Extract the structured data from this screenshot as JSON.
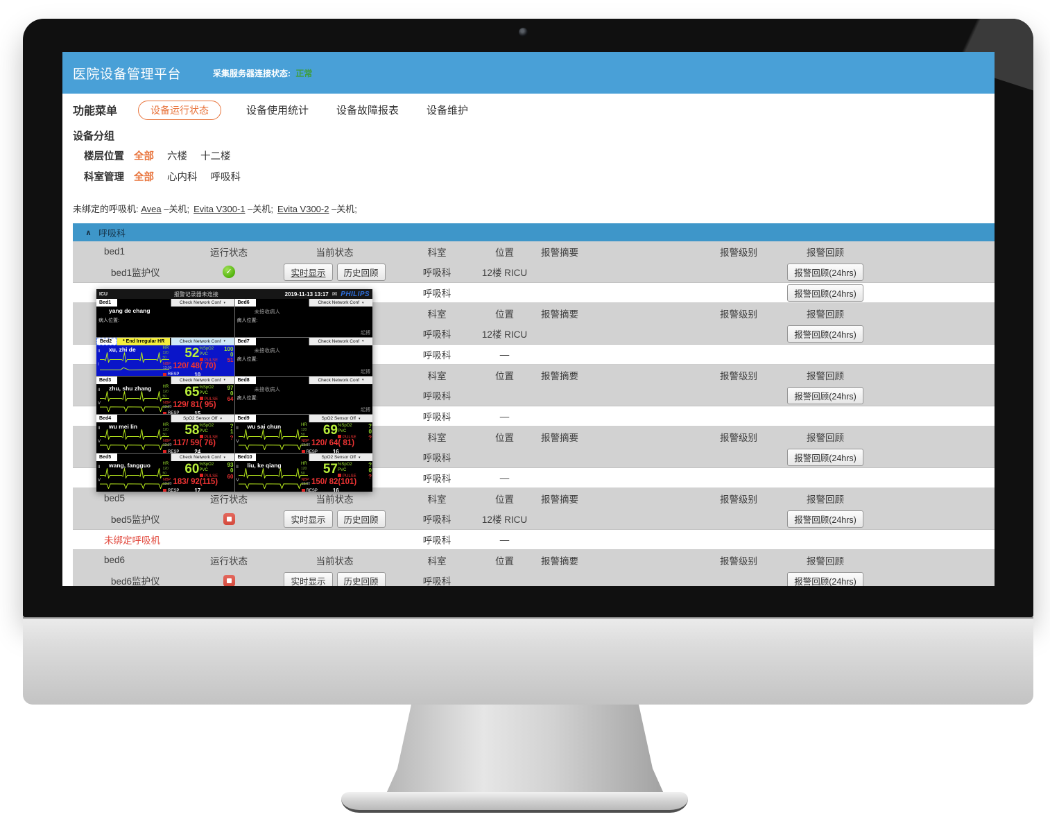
{
  "header": {
    "title": "医院设备管理平台",
    "server_status_label": "采集服务器连接状态:",
    "server_status_value": "正常"
  },
  "nav": {
    "menu_label": "功能菜单",
    "tabs": [
      {
        "label": "设备运行状态",
        "active": true
      },
      {
        "label": "设备使用统计",
        "active": false
      },
      {
        "label": "设备故障报表",
        "active": false
      },
      {
        "label": "设备维护",
        "active": false
      }
    ]
  },
  "filters": {
    "group_label": "设备分组",
    "rows": [
      {
        "label": "楼层位置",
        "options": [
          {
            "label": "全部",
            "active": true
          },
          {
            "label": "六楼",
            "active": false
          },
          {
            "label": "十二楼",
            "active": false
          }
        ]
      },
      {
        "label": "科室管理",
        "options": [
          {
            "label": "全部",
            "active": true
          },
          {
            "label": "心内科",
            "active": false
          },
          {
            "label": "呼吸科",
            "active": false
          }
        ]
      }
    ]
  },
  "unbound": {
    "prefix": "未绑定的呼吸机:",
    "items": [
      {
        "link": "Avea",
        "suffix": "–关机;"
      },
      {
        "link": "Evita V300-1",
        "suffix": "–关机;"
      },
      {
        "link": "Evita V300-2",
        "suffix": "–关机;"
      }
    ]
  },
  "section": {
    "collapse_icon": "∧",
    "title": "呼吸科"
  },
  "table": {
    "columns": [
      "运行状态",
      "当前状态",
      "科室",
      "位置",
      "报警摘要",
      "报警级别",
      "报警回顾"
    ],
    "buttons": {
      "realtime": "实时显示",
      "history": "历史回顾",
      "alarm_review": "报警回顾(24hrs)"
    },
    "dash": "—",
    "blocks": [
      {
        "bed": "bed1",
        "device": "bed1监护仪",
        "status": "running",
        "covered": false,
        "realtime_link": true,
        "dept": "呼吸科",
        "location": "12楼 RICU",
        "device_alarm_btn": true,
        "vent": {
          "label": "",
          "dept": "呼吸科",
          "pos": "",
          "alarm_btn": true
        }
      },
      {
        "bed": "",
        "device": "",
        "status": "none",
        "covered": true,
        "realtime_link": false,
        "dept": "呼吸科",
        "location": "12楼 RICU",
        "device_alarm_btn": true,
        "vent": {
          "label": "",
          "dept": "呼吸科",
          "pos": "—",
          "alarm_btn": false
        }
      },
      {
        "bed": "",
        "device": "",
        "status": "none",
        "covered": true,
        "realtime_link": false,
        "dept": "呼吸科",
        "location": "",
        "device_alarm_btn": true,
        "vent": {
          "label": "",
          "dept": "呼吸科",
          "pos": "—",
          "alarm_btn": false
        }
      },
      {
        "bed": "",
        "device": "",
        "status": "none",
        "covered": true,
        "realtime_link": false,
        "dept": "呼吸科",
        "location": "",
        "device_alarm_btn": true,
        "vent": {
          "label": "",
          "dept": "呼吸科",
          "pos": "—",
          "alarm_btn": false
        }
      },
      {
        "bed": "bed5",
        "device": "bed5监护仪",
        "status": "stopped",
        "covered": false,
        "realtime_link": false,
        "dept": "呼吸科",
        "location": "12楼 RICU",
        "device_alarm_btn": true,
        "vent": {
          "label": "未绑定呼吸机",
          "dept": "呼吸科",
          "pos": "—",
          "alarm_btn": false
        }
      },
      {
        "bed": "bed6",
        "device": "bed6监护仪",
        "status": "stopped",
        "covered": false,
        "realtime_link": false,
        "dept": "呼吸科",
        "location": "",
        "device_alarm_btn": true,
        "vent": null
      }
    ]
  },
  "monitor": {
    "titlebar": {
      "unit": "ICU",
      "alarm_text": "报警记录器未连接",
      "datetime": "2019-11-13 13:17",
      "brand": "PHILIPS"
    },
    "labels": {
      "hr": "HR",
      "spo2": "%SpO2",
      "pvc": "PVC",
      "pulse": "PULSE",
      "nbp": "NBP",
      "resp": "RESP"
    },
    "tiles": [
      {
        "bed": "Bed1",
        "type": "named",
        "conf": "Check Network Conf",
        "name": "yang de chang",
        "location_label": "病人位置:"
      },
      {
        "bed": "Bed6",
        "type": "empty",
        "conf": "Check Network Conf",
        "empty_text": "未接收病人",
        "location_label": "病人位置:",
        "pacing": "起搏"
      },
      {
        "bed": "Bed2",
        "type": "vitals",
        "selected": true,
        "conf": "Check Network Conf",
        "alarm": "* End Irregular HR",
        "name": "xu, zhi de",
        "leads": [
          "II",
          "I"
        ],
        "waves": [
          "qrs",
          "flat"
        ],
        "hr": "52",
        "hr_hi": "120",
        "hr_lo": "50",
        "spo2": "100",
        "pvc": "0",
        "pulse": "51",
        "nbp_time": "13:00",
        "nbp": "120/ 48( 70)",
        "resp": "10"
      },
      {
        "bed": "Bed7",
        "type": "empty",
        "conf": "Check Network Conf",
        "empty_text": "未接收病人",
        "location_label": "病人位置:",
        "pacing": "起搏"
      },
      {
        "bed": "Bed3",
        "type": "vitals",
        "selected": false,
        "conf": "Check Network Conf",
        "alarm": "",
        "name": "zhu, shu zhang",
        "leads": [
          "II",
          "V"
        ],
        "waves": [
          "qrs",
          "dips"
        ],
        "hr": "65",
        "hr_hi": "120",
        "hr_lo": "50",
        "spo2": "97",
        "pvc": "0",
        "pulse": "64",
        "nbp_time": "13:00",
        "nbp": "129/ 81( 95)",
        "resp": "15"
      },
      {
        "bed": "Bed8",
        "type": "empty",
        "conf": "Check Network Conf",
        "empty_text": "未接收病人",
        "location_label": "病人位置:",
        "pacing": "起搏"
      },
      {
        "bed": "Bed4",
        "type": "vitals",
        "selected": false,
        "conf": "SpO2  Sensor Off",
        "alarm": "",
        "name": "wu mei lin",
        "leads": [
          "II",
          "V"
        ],
        "waves": [
          "qrs",
          "dips"
        ],
        "hr": "58",
        "hr_hi": "120",
        "hr_lo": "50",
        "spo2": "?",
        "pvc": "1",
        "pulse": "?",
        "nbp_time": "13:00",
        "nbp": "117/ 59( 76)",
        "resp": "24"
      },
      {
        "bed": "Bed9",
        "type": "vitals",
        "selected": false,
        "conf": "SpO2  Sensor Off",
        "alarm": "",
        "name": "wu sai chun",
        "leads": [
          "II",
          "V"
        ],
        "waves": [
          "qrs",
          "dips"
        ],
        "hr": "69",
        "hr_hi": "120",
        "hr_lo": "50",
        "spo2": "?",
        "pvc": "0",
        "pulse": "?",
        "nbp_time": "13:00",
        "nbp": "120/ 64( 81)",
        "resp": "16"
      },
      {
        "bed": "Bed5",
        "type": "vitals",
        "selected": false,
        "conf": "Check Network Conf",
        "alarm": "",
        "name": "wang, fangguo",
        "leads": [
          "II",
          "V"
        ],
        "waves": [
          "qrs",
          "dips"
        ],
        "hr": "60",
        "hr_hi": "120",
        "hr_lo": "50",
        "spo2": "93",
        "pvc": "0",
        "pulse": "60",
        "nbp_time": "13:00",
        "nbp": "183/ 92(115)",
        "resp": "17"
      },
      {
        "bed": "Bed10",
        "type": "vitals",
        "selected": false,
        "conf": "SpO2  Sensor Off",
        "alarm": "",
        "name": "liu, ke qiang",
        "leads": [
          "II",
          "V"
        ],
        "waves": [
          "qrs",
          "dips"
        ],
        "hr": "57",
        "hr_hi": "120",
        "hr_lo": "50",
        "spo2": "?",
        "pvc": "0",
        "pulse": "?",
        "nbp_time": "13:00",
        "nbp": "150/ 82(101)",
        "resp": "16"
      }
    ]
  },
  "colors": {
    "accent_blue": "#49a0d7",
    "section_blue": "#3e96c9",
    "orange": "#e8743c",
    "status_green": "#3f9e3f",
    "alert_red": "#e2493d",
    "ecg_green": "#b5e61d",
    "philips_blue": "#2e6fdc",
    "monitor_selected_bg": "#0a15c9"
  }
}
